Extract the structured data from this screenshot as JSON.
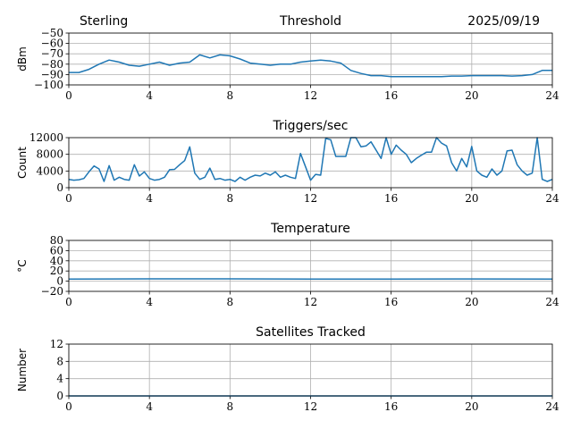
{
  "header": {
    "station": "Sterling",
    "date": "2025/09/19"
  },
  "chart_data": [
    {
      "type": "line",
      "title": "Threshold",
      "ylabel": "dBm",
      "xlabel": "",
      "xlim": [
        0,
        24
      ],
      "ylim": [
        -100,
        -50
      ],
      "xticks": [
        0,
        4,
        8,
        12,
        16,
        20,
        24
      ],
      "yticks": [
        -100,
        -90,
        -80,
        -70,
        -60,
        -50
      ],
      "ytick_labels": [
        "−100",
        "−90",
        "−80",
        "−70",
        "−60",
        "−50"
      ],
      "grid": true,
      "x_step": 0.5,
      "values": [
        -88,
        -88,
        -85,
        -80,
        -76,
        -78,
        -81,
        -82,
        -80,
        -78,
        -81,
        -79,
        -78,
        -71,
        -74,
        -71,
        -72,
        -75,
        -79,
        -80,
        -81,
        -80,
        -80,
        -78,
        -77,
        -76,
        -77,
        -79,
        -86,
        -89,
        -91,
        -91,
        -92,
        -92,
        -92,
        -92,
        -92,
        -92,
        -91.5,
        -91.5,
        -91,
        -91,
        -91,
        -91,
        -91.5,
        -91,
        -90,
        -86,
        -86
      ]
    },
    {
      "type": "line",
      "title": "Triggers/sec",
      "ylabel": "Count",
      "xlabel": "",
      "xlim": [
        0,
        24
      ],
      "ylim": [
        0,
        12000
      ],
      "xticks": [
        0,
        4,
        8,
        12,
        16,
        20,
        24
      ],
      "yticks": [
        0,
        4000,
        8000,
        12000
      ],
      "ytick_labels": [
        "0",
        "4000",
        "8000",
        "12000"
      ],
      "grid": true,
      "x_step": 0.25,
      "values": [
        2000,
        1800,
        1900,
        2200,
        3800,
        5200,
        4500,
        1500,
        5300,
        1800,
        2500,
        2000,
        1800,
        5500,
        2800,
        3800,
        2200,
        1800,
        2000,
        2500,
        4300,
        4400,
        5500,
        6500,
        9800,
        3500,
        2000,
        2500,
        4700,
        2000,
        2200,
        1800,
        2000,
        1500,
        2500,
        1800,
        2500,
        3000,
        2800,
        3500,
        3000,
        3800,
        2500,
        3000,
        2500,
        2200,
        8200,
        5000,
        1800,
        3200,
        3000,
        11800,
        11500,
        7500,
        7500,
        7500,
        12000,
        12000,
        9800,
        10000,
        11000,
        9000,
        7000,
        12000,
        8000,
        10200,
        9000,
        8000,
        6000,
        7000,
        7800,
        8500,
        8500,
        12000,
        10700,
        10000,
        6000,
        4000,
        7000,
        5000,
        9900,
        4000,
        3000,
        2500,
        4500,
        3000,
        4000,
        8800,
        9000,
        5500,
        4000,
        3000,
        3500,
        12000,
        2000,
        1500,
        2000
      ]
    },
    {
      "type": "line",
      "title": "Temperature",
      "ylabel": "°C",
      "xlabel": "",
      "xlim": [
        0,
        24
      ],
      "ylim": [
        -20,
        80
      ],
      "xticks": [
        0,
        4,
        8,
        12,
        16,
        20,
        24
      ],
      "yticks": [
        -20,
        0,
        20,
        40,
        60,
        80
      ],
      "ytick_labels": [
        "−20",
        "0",
        "20",
        "40",
        "60",
        "80"
      ],
      "grid": true,
      "x_step": 4,
      "values": [
        4,
        4.5,
        4.5,
        4.2,
        4.2,
        4.3,
        4
      ]
    },
    {
      "type": "line",
      "title": "Satellites Tracked",
      "ylabel": "Number",
      "xlabel": "",
      "xlim": [
        0,
        24
      ],
      "ylim": [
        0,
        12
      ],
      "xticks": [
        0,
        4,
        8,
        12,
        16,
        20,
        24
      ],
      "yticks": [
        0,
        4,
        8,
        12
      ],
      "ytick_labels": [
        "0",
        "4",
        "8",
        "12"
      ],
      "grid": true,
      "x_step": 24,
      "values": [
        0,
        0
      ]
    }
  ]
}
